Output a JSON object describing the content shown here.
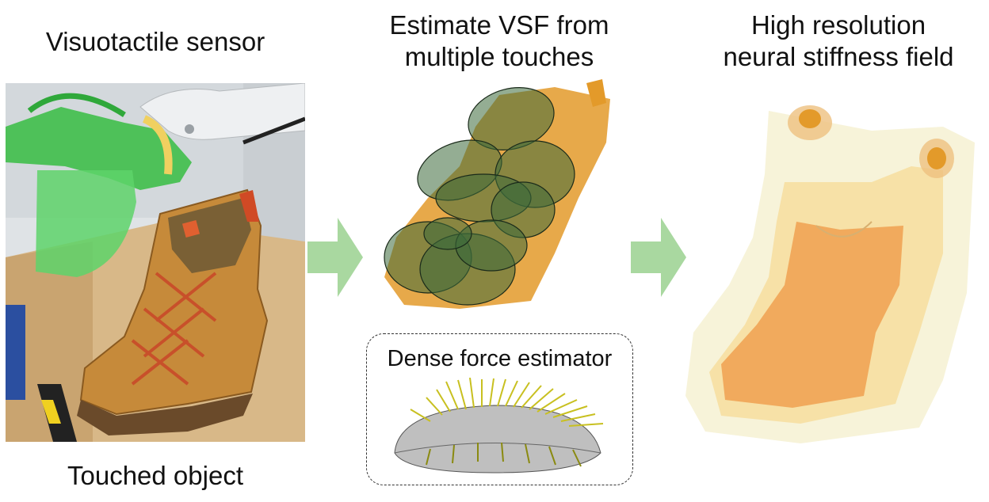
{
  "labels": {
    "visuotactile_sensor": "Visuotactile sensor",
    "estimate_vsf_line1": "Estimate VSF from",
    "estimate_vsf_line2": "multiple touches",
    "high_res_line1": "High resolution",
    "high_res_line2": "neural stiffness field",
    "touched_object": "Touched object",
    "dense_force_estimator": "Dense force estimator"
  },
  "colors": {
    "arrow": "#a9d8a0",
    "sensor_green": "#3fbf4a",
    "shoe_tan": "#c68a3a",
    "lace_red": "#c8502a",
    "vsf_orange": "#e39a2a",
    "ellipse_green": "#3d6a3a",
    "field_orange": "#f0a050",
    "field_cream": "#f4efcc",
    "force_yellow": "#c8c020"
  }
}
